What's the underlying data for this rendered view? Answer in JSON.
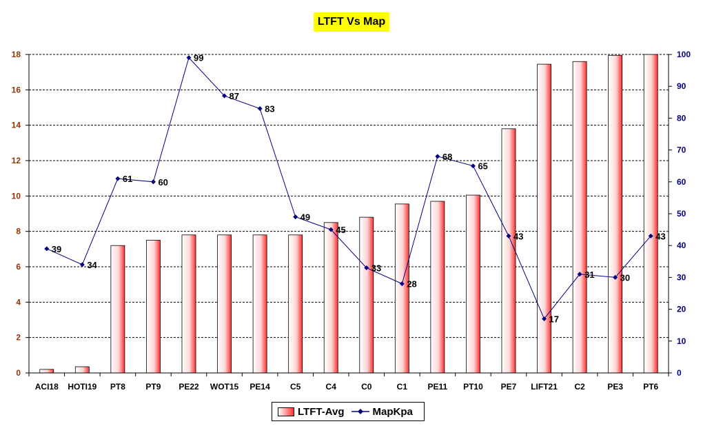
{
  "chart_data": {
    "type": "bar",
    "title": "LTFT Vs Map",
    "categories": [
      "ACI18",
      "HOTI19",
      "PT8",
      "PT9",
      "PE22",
      "WOT15",
      "PE14",
      "C5",
      "C4",
      "C0",
      "C1",
      "PE11",
      "PT10",
      "PE7",
      "LIFT21",
      "C2",
      "PE3",
      "PT6"
    ],
    "series": [
      {
        "name": "LTFT-Avg",
        "axis": "left",
        "type": "bar",
        "values": [
          0.2,
          0.35,
          7.2,
          7.5,
          7.8,
          7.8,
          7.8,
          7.8,
          8.5,
          8.8,
          9.55,
          9.7,
          10.05,
          13.8,
          17.45,
          17.6,
          17.95,
          18.0
        ]
      },
      {
        "name": "MapKpa",
        "axis": "right",
        "type": "line",
        "values": [
          39,
          34,
          61,
          60,
          99,
          87,
          83,
          49,
          45,
          33,
          28,
          68,
          65,
          43,
          17,
          31,
          30,
          43
        ]
      }
    ],
    "y_left": {
      "ylim": [
        0,
        18
      ],
      "ticks": [
        0,
        2,
        4,
        6,
        8,
        10,
        12,
        14,
        16,
        18
      ]
    },
    "y_right": {
      "ylim": [
        0,
        100
      ],
      "ticks": [
        0,
        10,
        20,
        30,
        40,
        50,
        60,
        70,
        80,
        90,
        100
      ]
    },
    "grid": "horizontal-dashed",
    "legend_position": "bottom",
    "colors": {
      "bar_fill_dark": "#ff3333",
      "bar_fill_light": "#ffffff",
      "line": "#000080",
      "left_axis_text": "#993300",
      "right_axis_text": "#000080",
      "title_bg": "#ffff00"
    }
  }
}
